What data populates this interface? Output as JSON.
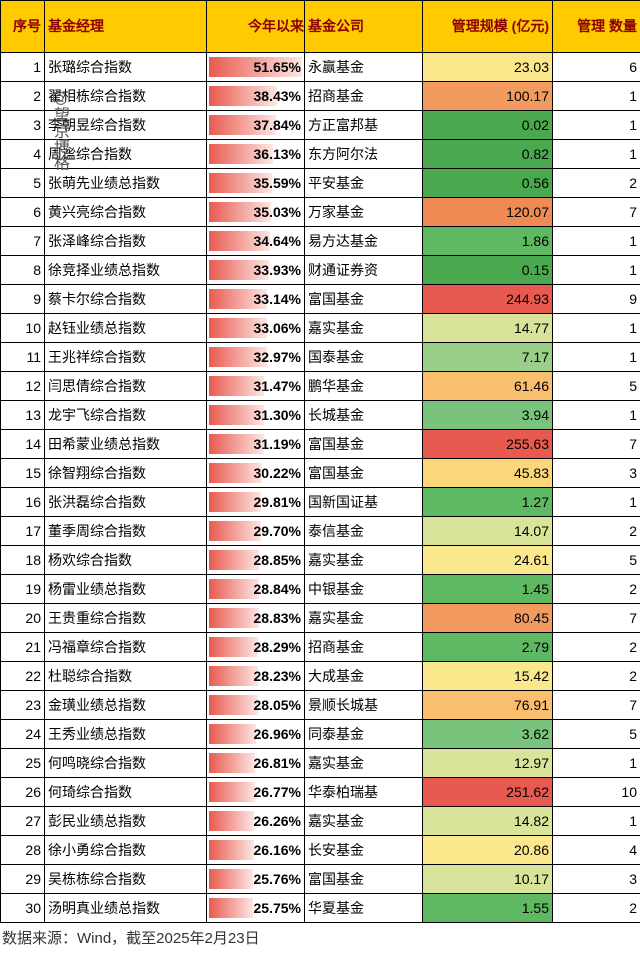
{
  "columns": {
    "seq": "序号",
    "manager": "基金经理",
    "ytd": "今年以来",
    "company": "基金公司",
    "aum": "管理规模\n(亿元)",
    "count": "管理\n数量"
  },
  "watermark": "@望京博格",
  "source": "数据来源：Wind，截至2025年2月23日",
  "style": {
    "header_bg": "#feca00",
    "header_color": "#8b0000",
    "border_color": "#000000",
    "font_size": 14,
    "ret_bar_gradient_left": "#e85a4f",
    "ret_bar_gradient_right": "#fde6e3",
    "ret_min": 25.75,
    "ret_max": 51.65,
    "aum_scale": [
      {
        "max": 1.0,
        "color": "#4aa84e"
      },
      {
        "max": 3.0,
        "color": "#5fb862"
      },
      {
        "max": 5.0,
        "color": "#79c37c"
      },
      {
        "max": 10.0,
        "color": "#9acf8a"
      },
      {
        "max": 15.0,
        "color": "#d9e49a"
      },
      {
        "max": 25.0,
        "color": "#fbe88c"
      },
      {
        "max": 50.0,
        "color": "#fbd77a"
      },
      {
        "max": 80.0,
        "color": "#f9be6e"
      },
      {
        "max": 105.0,
        "color": "#f39b5e"
      },
      {
        "max": 130.0,
        "color": "#ef8a55"
      },
      {
        "max": 999999,
        "color": "#e85a4f"
      }
    ]
  },
  "rows": [
    {
      "seq": 1,
      "manager": "张璐综合指数",
      "ytd": 51.65,
      "company": "永赢基金",
      "aum": 23.03,
      "count": 6
    },
    {
      "seq": 2,
      "manager": "翟相栋综合指数",
      "ytd": 38.43,
      "company": "招商基金",
      "aum": 100.17,
      "count": 1
    },
    {
      "seq": 3,
      "manager": "李朝昱综合指数",
      "ytd": 37.84,
      "company": "方正富邦基",
      "aum": 0.02,
      "count": 1
    },
    {
      "seq": 4,
      "manager": "周谧综合指数",
      "ytd": 36.13,
      "company": "东方阿尔法",
      "aum": 0.82,
      "count": 1
    },
    {
      "seq": 5,
      "manager": "张萌先业绩总指数",
      "ytd": 35.59,
      "company": "平安基金",
      "aum": 0.56,
      "count": 2
    },
    {
      "seq": 6,
      "manager": "黄兴亮综合指数",
      "ytd": 35.03,
      "company": "万家基金",
      "aum": 120.07,
      "count": 7
    },
    {
      "seq": 7,
      "manager": "张泽峰综合指数",
      "ytd": 34.64,
      "company": "易方达基金",
      "aum": 1.86,
      "count": 1
    },
    {
      "seq": 8,
      "manager": "徐竞择业绩总指数",
      "ytd": 33.93,
      "company": "财通证券资",
      "aum": 0.15,
      "count": 1
    },
    {
      "seq": 9,
      "manager": "蔡卡尔综合指数",
      "ytd": 33.14,
      "company": "富国基金",
      "aum": 244.93,
      "count": 9
    },
    {
      "seq": 10,
      "manager": "赵钰业绩总指数",
      "ytd": 33.06,
      "company": "嘉实基金",
      "aum": 14.77,
      "count": 1
    },
    {
      "seq": 11,
      "manager": "王兆祥综合指数",
      "ytd": 32.97,
      "company": "国泰基金",
      "aum": 7.17,
      "count": 1
    },
    {
      "seq": 12,
      "manager": "闫思倩综合指数",
      "ytd": 31.47,
      "company": "鹏华基金",
      "aum": 61.46,
      "count": 5
    },
    {
      "seq": 13,
      "manager": "龙宇飞综合指数",
      "ytd": 31.3,
      "company": "长城基金",
      "aum": 3.94,
      "count": 1
    },
    {
      "seq": 14,
      "manager": "田希蒙业绩总指数",
      "ytd": 31.19,
      "company": "富国基金",
      "aum": 255.63,
      "count": 7
    },
    {
      "seq": 15,
      "manager": "徐智翔综合指数",
      "ytd": 30.22,
      "company": "富国基金",
      "aum": 45.83,
      "count": 3
    },
    {
      "seq": 16,
      "manager": "张洪磊综合指数",
      "ytd": 29.81,
      "company": "国新国证基",
      "aum": 1.27,
      "count": 1
    },
    {
      "seq": 17,
      "manager": "董季周综合指数",
      "ytd": 29.7,
      "company": "泰信基金",
      "aum": 14.07,
      "count": 2
    },
    {
      "seq": 18,
      "manager": "杨欢综合指数",
      "ytd": 28.85,
      "company": "嘉实基金",
      "aum": 24.61,
      "count": 5
    },
    {
      "seq": 19,
      "manager": "杨雷业绩总指数",
      "ytd": 28.84,
      "company": "中银基金",
      "aum": 1.45,
      "count": 2
    },
    {
      "seq": 20,
      "manager": "王贵重综合指数",
      "ytd": 28.83,
      "company": "嘉实基金",
      "aum": 80.45,
      "count": 7
    },
    {
      "seq": 21,
      "manager": "冯福章综合指数",
      "ytd": 28.29,
      "company": "招商基金",
      "aum": 2.79,
      "count": 2
    },
    {
      "seq": 22,
      "manager": "杜聪综合指数",
      "ytd": 28.23,
      "company": "大成基金",
      "aum": 15.42,
      "count": 2
    },
    {
      "seq": 23,
      "manager": "金璜业绩总指数",
      "ytd": 28.05,
      "company": "景顺长城基",
      "aum": 76.91,
      "count": 7
    },
    {
      "seq": 24,
      "manager": "王秀业绩总指数",
      "ytd": 26.96,
      "company": "同泰基金",
      "aum": 3.62,
      "count": 5
    },
    {
      "seq": 25,
      "manager": "何鸣晓综合指数",
      "ytd": 26.81,
      "company": "嘉实基金",
      "aum": 12.97,
      "count": 1
    },
    {
      "seq": 26,
      "manager": "何琦综合指数",
      "ytd": 26.77,
      "company": "华泰柏瑞基",
      "aum": 251.62,
      "count": 10
    },
    {
      "seq": 27,
      "manager": "彭民业绩总指数",
      "ytd": 26.26,
      "company": "嘉实基金",
      "aum": 14.82,
      "count": 1
    },
    {
      "seq": 28,
      "manager": "徐小勇综合指数",
      "ytd": 26.16,
      "company": "长安基金",
      "aum": 20.86,
      "count": 4
    },
    {
      "seq": 29,
      "manager": "吴栋栋综合指数",
      "ytd": 25.76,
      "company": "富国基金",
      "aum": 10.17,
      "count": 3
    },
    {
      "seq": 30,
      "manager": "汤明真业绩总指数",
      "ytd": 25.75,
      "company": "华夏基金",
      "aum": 1.55,
      "count": 2
    }
  ]
}
